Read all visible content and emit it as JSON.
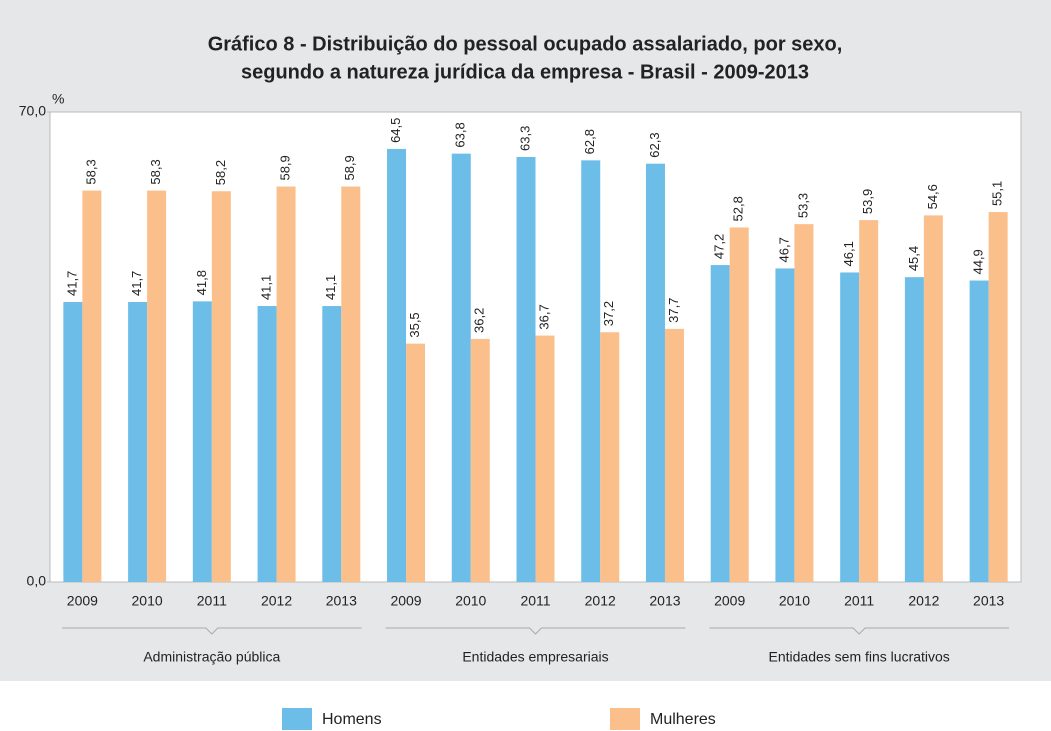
{
  "chart_data": {
    "type": "bar",
    "title": [
      "Gráfico 8 - Distribuição do pessoal ocupado assalariado, por sexo,",
      "segundo a natureza jurídica da empresa - Brasil - 2009-2013"
    ],
    "y_label": "%",
    "categories": [
      "2009",
      "2010",
      "2011",
      "2012",
      "2013",
      "2009",
      "2010",
      "2011",
      "2012",
      "2013",
      "2009",
      "2010",
      "2011",
      "2012",
      "2013"
    ],
    "groups": [
      "Administração pública",
      "Entidades empresariais",
      "Entidades sem fins lucrativos"
    ],
    "series": [
      {
        "name": "Homens",
        "color": "#6cbde8",
        "values": [
          41.7,
          41.7,
          41.8,
          41.1,
          41.1,
          64.5,
          63.8,
          63.3,
          62.8,
          62.3,
          47.2,
          46.7,
          46.1,
          45.4,
          44.9
        ],
        "value_labels": [
          "41,7",
          "41,7",
          "41,8",
          "41,1",
          "41,1",
          "64,5",
          "63,8",
          "63,3",
          "62,8",
          "62,3",
          "47,2",
          "46,7",
          "46,1",
          "45,4",
          "44,9"
        ]
      },
      {
        "name": "Mulheres",
        "color": "#fbbf8c",
        "values": [
          58.3,
          58.3,
          58.2,
          58.9,
          58.9,
          35.5,
          36.2,
          36.7,
          37.2,
          37.7,
          52.8,
          53.3,
          53.9,
          54.6,
          55.1
        ],
        "value_labels": [
          "58,3",
          "58,3",
          "58,2",
          "58,9",
          "58,9",
          "35,5",
          "36,2",
          "36,7",
          "37,2",
          "37,7",
          "52,8",
          "53,3",
          "53,9",
          "54,6",
          "55,1"
        ]
      }
    ],
    "ylim": [
      0,
      70
    ],
    "yticks": [
      {
        "value": 0,
        "label": "0,0"
      },
      {
        "value": 70,
        "label": "70,0"
      }
    ],
    "grid": false,
    "legend": "bottom"
  }
}
